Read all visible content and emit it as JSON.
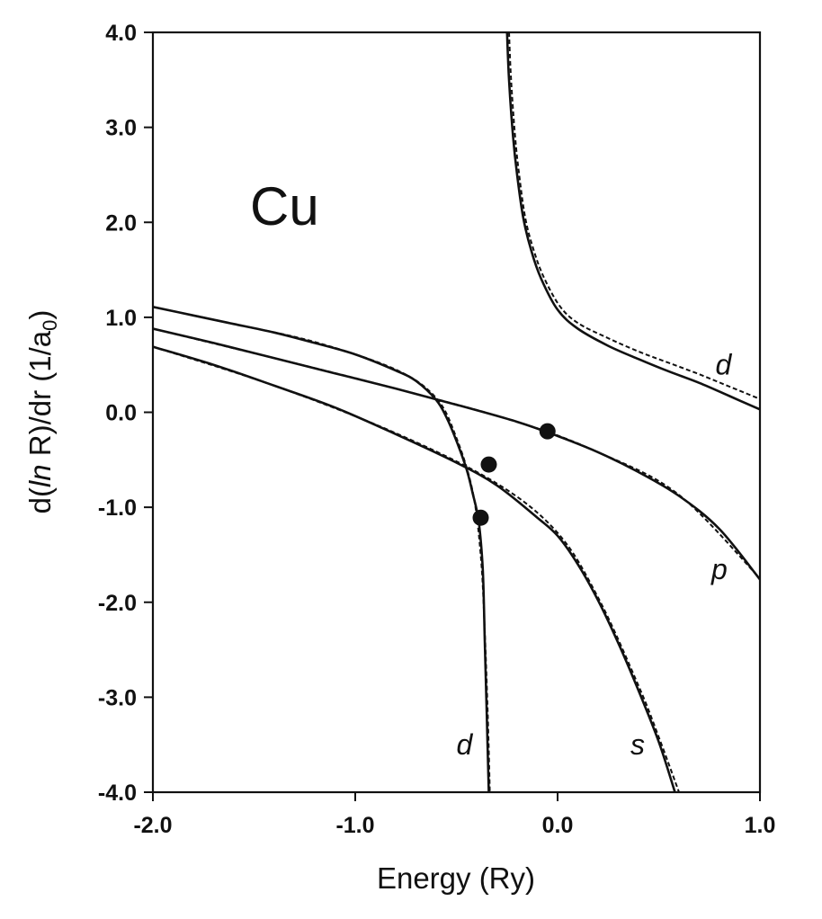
{
  "chart_data": {
    "type": "line",
    "title": "",
    "annotation": "Cu",
    "xlabel": "Energy (Ry)",
    "ylabel_parts": {
      "prefix": "d(",
      "ln": "ln",
      "mid": " R)/dr (1/a",
      "sub": "0",
      "suffix": ")"
    },
    "xlim": [
      -2.0,
      1.0
    ],
    "ylim": [
      -4.0,
      4.0
    ],
    "xticks": [
      -2.0,
      -1.0,
      0.0,
      1.0
    ],
    "xtick_labels": [
      "-2.0",
      "-1.0",
      "0.0",
      "1.0"
    ],
    "yticks": [
      -4.0,
      -3.0,
      -2.0,
      -1.0,
      0.0,
      1.0,
      2.0,
      3.0,
      4.0
    ],
    "ytick_labels": [
      "-4.0",
      "-3.0",
      "-2.0",
      "-1.0",
      "0.0",
      "1.0",
      "2.0",
      "3.0",
      "4.0"
    ],
    "grid": false,
    "line_styles": {
      "solid": "exact",
      "dashed": "approximate"
    },
    "series": [
      {
        "label": "s",
        "style": "solid",
        "points": [
          [
            -2.0,
            0.69
          ],
          [
            -1.7,
            0.5
          ],
          [
            -1.4,
            0.28
          ],
          [
            -1.1,
            0.05
          ],
          [
            -0.8,
            -0.23
          ],
          [
            -0.5,
            -0.53
          ],
          [
            -0.3,
            -0.77
          ],
          [
            -0.1,
            -1.11
          ],
          [
            0.0,
            -1.3
          ],
          [
            0.1,
            -1.6
          ],
          [
            0.2,
            -1.98
          ],
          [
            0.3,
            -2.43
          ],
          [
            0.4,
            -2.93
          ],
          [
            0.5,
            -3.47
          ],
          [
            0.58,
            -4.0
          ]
        ]
      },
      {
        "label": "s",
        "style": "dashed",
        "points": [
          [
            -2.0,
            0.69
          ],
          [
            -1.4,
            0.28
          ],
          [
            -0.8,
            -0.22
          ],
          [
            -0.3,
            -0.75
          ],
          [
            0.0,
            -1.27
          ],
          [
            0.2,
            -1.95
          ],
          [
            0.4,
            -2.88
          ],
          [
            0.5,
            -3.42
          ],
          [
            0.6,
            -4.0
          ]
        ]
      },
      {
        "label": "p",
        "style": "solid",
        "points": [
          [
            -2.0,
            0.88
          ],
          [
            -1.7,
            0.73
          ],
          [
            -1.4,
            0.57
          ],
          [
            -1.1,
            0.41
          ],
          [
            -0.8,
            0.25
          ],
          [
            -0.5,
            0.08
          ],
          [
            -0.2,
            -0.1
          ],
          [
            0.0,
            -0.25
          ],
          [
            0.2,
            -0.42
          ],
          [
            0.4,
            -0.63
          ],
          [
            0.6,
            -0.88
          ],
          [
            0.8,
            -1.23
          ],
          [
            1.0,
            -1.76
          ]
        ]
      },
      {
        "label": "p",
        "style": "dashed",
        "points": [
          [
            -2.0,
            0.88
          ],
          [
            -1.4,
            0.57
          ],
          [
            -0.8,
            0.25
          ],
          [
            -0.2,
            -0.1
          ],
          [
            0.2,
            -0.42
          ],
          [
            0.6,
            -0.87
          ],
          [
            1.0,
            -1.75
          ]
        ]
      },
      {
        "label": "d",
        "style": "solid",
        "points": [
          [
            -2.0,
            1.11
          ],
          [
            -1.8,
            1.02
          ],
          [
            -1.6,
            0.93
          ],
          [
            -1.4,
            0.84
          ],
          [
            -1.2,
            0.73
          ],
          [
            -1.0,
            0.61
          ],
          [
            -0.8,
            0.44
          ],
          [
            -0.7,
            0.33
          ],
          [
            -0.6,
            0.13
          ],
          [
            -0.55,
            -0.05
          ],
          [
            -0.5,
            -0.3
          ],
          [
            -0.45,
            -0.6
          ],
          [
            -0.42,
            -0.85
          ],
          [
            -0.39,
            -1.15
          ],
          [
            -0.37,
            -1.65
          ],
          [
            -0.36,
            -2.4
          ],
          [
            -0.35,
            -3.2
          ],
          [
            -0.34,
            -4.0
          ]
        ]
      },
      {
        "label": "d",
        "style": "dashed",
        "points": [
          [
            -2.0,
            1.11
          ],
          [
            -1.6,
            0.93
          ],
          [
            -1.2,
            0.74
          ],
          [
            -0.8,
            0.45
          ],
          [
            -0.6,
            0.15
          ],
          [
            -0.5,
            -0.27
          ],
          [
            -0.42,
            -0.83
          ],
          [
            -0.38,
            -1.5
          ],
          [
            -0.36,
            -2.3
          ],
          [
            -0.345,
            -3.2
          ],
          [
            -0.335,
            -4.0
          ]
        ]
      },
      {
        "label": "d",
        "style": "solid",
        "points": [
          [
            -0.25,
            4.0
          ],
          [
            -0.24,
            3.5
          ],
          [
            -0.22,
            2.9
          ],
          [
            -0.2,
            2.5
          ],
          [
            -0.17,
            2.05
          ],
          [
            -0.13,
            1.7
          ],
          [
            -0.08,
            1.4
          ],
          [
            0.0,
            1.08
          ],
          [
            0.1,
            0.88
          ],
          [
            0.25,
            0.7
          ],
          [
            0.4,
            0.56
          ],
          [
            0.55,
            0.43
          ],
          [
            0.7,
            0.31
          ],
          [
            0.85,
            0.17
          ],
          [
            1.0,
            0.03
          ]
        ]
      },
      {
        "label": "d",
        "style": "dashed",
        "points": [
          [
            -0.24,
            4.0
          ],
          [
            -0.23,
            3.5
          ],
          [
            -0.21,
            2.9
          ],
          [
            -0.19,
            2.5
          ],
          [
            -0.16,
            2.05
          ],
          [
            -0.12,
            1.72
          ],
          [
            -0.07,
            1.43
          ],
          [
            0.01,
            1.12
          ],
          [
            0.1,
            0.94
          ],
          [
            0.25,
            0.78
          ],
          [
            0.4,
            0.64
          ],
          [
            0.55,
            0.52
          ],
          [
            0.7,
            0.4
          ],
          [
            0.85,
            0.27
          ],
          [
            1.0,
            0.14
          ]
        ]
      }
    ],
    "markers": [
      {
        "x": -0.05,
        "y": -0.2
      },
      {
        "x": -0.34,
        "y": -0.55
      },
      {
        "x": -0.38,
        "y": -1.11
      }
    ],
    "curve_labels": [
      {
        "text": "d",
        "x": 0.78,
        "y": 0.5
      },
      {
        "text": "p",
        "x": 0.76,
        "y": -1.65
      },
      {
        "text": "d",
        "x": -0.5,
        "y": -3.5
      },
      {
        "text": "s",
        "x": 0.36,
        "y": -3.5
      }
    ]
  }
}
